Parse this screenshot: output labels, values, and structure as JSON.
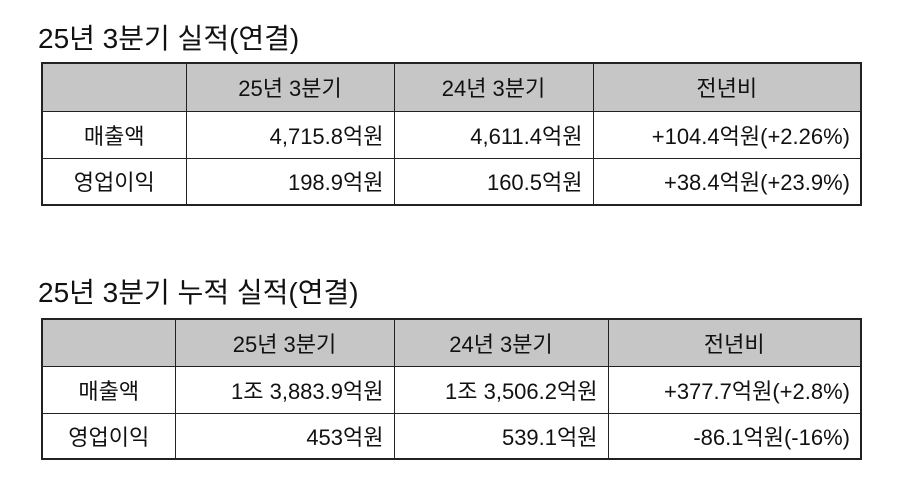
{
  "tables": [
    {
      "title": "25년 3분기 실적(연결)",
      "headers": [
        "",
        "25년 3분기",
        "24년 3분기",
        "전년비"
      ],
      "rows": [
        {
          "label": "매출액",
          "cur": "4,715.8억원",
          "prev": "4,611.4억원",
          "yoy": "+104.4억원(+2.26%)"
        },
        {
          "label": "영업이익",
          "cur": "198.9억원",
          "prev": "160.5억원",
          "yoy": "+38.4억원(+23.9%)"
        }
      ]
    },
    {
      "title": "25년 3분기 누적 실적(연결)",
      "headers": [
        "",
        "25년 3분기",
        "24년 3분기",
        "전년비"
      ],
      "rows": [
        {
          "label": "매출액",
          "cur": "1조 3,883.9억원",
          "prev": "1조 3,506.2억원",
          "yoy": "+377.7억원(+2.8%)"
        },
        {
          "label": "영업이익",
          "cur": "453억원",
          "prev": "539.1억원",
          "yoy": "-86.1억원(-16%)"
        }
      ]
    }
  ],
  "colors": {
    "header_bg": "#c6c6c6",
    "border": "#222222"
  }
}
